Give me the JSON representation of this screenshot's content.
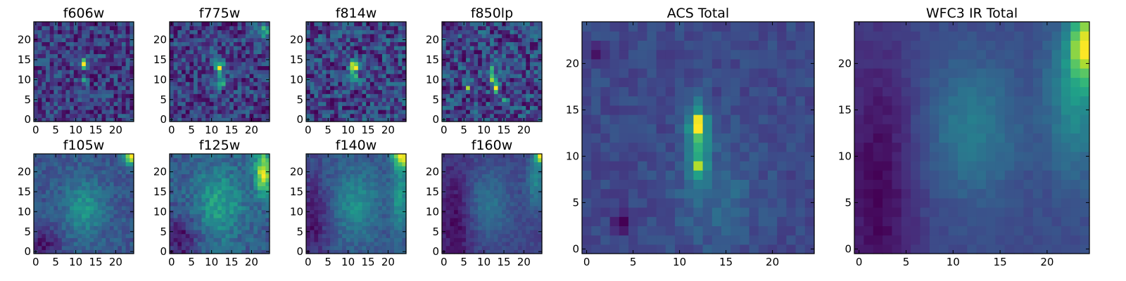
{
  "figure": {
    "colormap": "viridis",
    "colormap_stops": [
      "#440154",
      "#482878",
      "#3e4989",
      "#31688e",
      "#26828e",
      "#1f9e89",
      "#35b779",
      "#6ece58",
      "#b5de2b",
      "#fde725"
    ]
  },
  "chart_data": [
    {
      "type": "heatmap",
      "title": "f606w",
      "xlim": [
        0,
        24
      ],
      "ylim": [
        0,
        24
      ],
      "xticks": [
        "0",
        "5",
        "10",
        "15",
        "20"
      ],
      "yticks": [
        "0",
        "5",
        "10",
        "15",
        "20"
      ],
      "noise": 0.17,
      "background": 0.33,
      "features": [
        {
          "x": 12,
          "y": 14,
          "sx": 0.8,
          "sy": 0.9,
          "amp": 0.65
        },
        {
          "x": 12,
          "y": 10,
          "sx": 0.7,
          "sy": 0.8,
          "amp": 0.35
        }
      ]
    },
    {
      "type": "heatmap",
      "title": "f775w",
      "xlim": [
        0,
        24
      ],
      "ylim": [
        0,
        24
      ],
      "xticks": [
        "0",
        "5",
        "10",
        "15",
        "20"
      ],
      "yticks": [
        "0",
        "5",
        "10",
        "15",
        "20"
      ],
      "noise": 0.15,
      "background": 0.36,
      "features": [
        {
          "x": 12,
          "y": 13,
          "sx": 0.7,
          "sy": 1.6,
          "amp": 0.55
        },
        {
          "x": 12.5,
          "y": 9,
          "sx": 0.7,
          "sy": 0.7,
          "amp": 0.5
        },
        {
          "x": 23,
          "y": 22,
          "sx": 1.2,
          "sy": 2,
          "amp": 0.3
        }
      ]
    },
    {
      "type": "heatmap",
      "title": "f814w",
      "xlim": [
        0,
        24
      ],
      "ylim": [
        0,
        24
      ],
      "xticks": [
        "0",
        "5",
        "10",
        "15",
        "20"
      ],
      "yticks": [
        "0",
        "5",
        "10",
        "15",
        "20"
      ],
      "noise": 0.15,
      "background": 0.34,
      "features": [
        {
          "x": 11.5,
          "y": 13.5,
          "sx": 0.8,
          "sy": 1.2,
          "amp": 0.6
        },
        {
          "x": 12,
          "y": 10,
          "sx": 0.7,
          "sy": 0.8,
          "amp": 0.35
        }
      ]
    },
    {
      "type": "heatmap",
      "title": "f850lp",
      "xlim": [
        0,
        24
      ],
      "ylim": [
        0,
        24
      ],
      "xticks": [
        "0",
        "5",
        "10",
        "15",
        "20"
      ],
      "yticks": [
        "0",
        "5",
        "10",
        "15",
        "20"
      ],
      "noise": 0.16,
      "background": 0.35,
      "features": [
        {
          "x": 12,
          "y": 11,
          "sx": 0.6,
          "sy": 1.5,
          "amp": 0.45
        },
        {
          "x": 13,
          "y": 8,
          "sx": 0.6,
          "sy": 1.2,
          "amp": 0.45
        },
        {
          "x": 6,
          "y": 8,
          "sx": 0.4,
          "sy": 0.4,
          "amp": 0.6
        },
        {
          "x": 15,
          "y": 5,
          "sx": 0.6,
          "sy": 0.8,
          "amp": 0.3
        }
      ]
    },
    {
      "type": "heatmap",
      "title": "f105w",
      "xlim": [
        0,
        24
      ],
      "ylim": [
        0,
        24
      ],
      "xticks": [
        "0",
        "5",
        "10",
        "15",
        "20"
      ],
      "yticks": [
        "0",
        "5",
        "10",
        "15",
        "20"
      ],
      "noise": 0.07,
      "background": 0.4,
      "features": [
        {
          "x": 12,
          "y": 11,
          "sx": 3.5,
          "sy": 5,
          "amp": 0.22
        },
        {
          "x": 24,
          "y": 24,
          "sx": 1.2,
          "sy": 1.6,
          "amp": 0.6
        },
        {
          "x": 2,
          "y": 2,
          "sx": 3,
          "sy": 3,
          "amp": -0.18
        }
      ]
    },
    {
      "type": "heatmap",
      "title": "f125w",
      "xlim": [
        0,
        24
      ],
      "ylim": [
        0,
        24
      ],
      "xticks": [
        "0",
        "5",
        "10",
        "15",
        "20"
      ],
      "yticks": [
        "0",
        "5",
        "10",
        "15",
        "20"
      ],
      "noise": 0.07,
      "background": 0.4,
      "features": [
        {
          "x": 12,
          "y": 12,
          "sx": 4,
          "sy": 6,
          "amp": 0.2
        },
        {
          "x": 23,
          "y": 20,
          "sx": 1.5,
          "sy": 4,
          "amp": 0.45
        },
        {
          "x": 2,
          "y": 3,
          "sx": 3,
          "sy": 4,
          "amp": -0.18
        }
      ]
    },
    {
      "type": "heatmap",
      "title": "f140w",
      "xlim": [
        0,
        24
      ],
      "ylim": [
        0,
        24
      ],
      "xticks": [
        "0",
        "5",
        "10",
        "15",
        "20"
      ],
      "yticks": [
        "0",
        "5",
        "10",
        "15",
        "20"
      ],
      "noise": 0.06,
      "background": 0.33,
      "features": [
        {
          "x": 12,
          "y": 12,
          "sx": 4,
          "sy": 6,
          "amp": 0.2
        },
        {
          "x": 24,
          "y": 24,
          "sx": 2,
          "sy": 2,
          "amp": 0.6
        },
        {
          "x": 23,
          "y": 14,
          "sx": 1.5,
          "sy": 6,
          "amp": 0.25
        },
        {
          "x": 1,
          "y": 8,
          "sx": 3,
          "sy": 8,
          "amp": -0.18
        }
      ]
    },
    {
      "type": "heatmap",
      "title": "f160w",
      "xlim": [
        0,
        24
      ],
      "ylim": [
        0,
        24
      ],
      "xticks": [
        "0",
        "5",
        "10",
        "15",
        "20"
      ],
      "yticks": [
        "0",
        "5",
        "10",
        "15",
        "20"
      ],
      "noise": 0.05,
      "background": 0.3,
      "features": [
        {
          "x": 11,
          "y": 12,
          "sx": 4,
          "sy": 6,
          "amp": 0.18
        },
        {
          "x": 24,
          "y": 24,
          "sx": 0.8,
          "sy": 1.2,
          "amp": 0.7
        },
        {
          "x": 23,
          "y": 18,
          "sx": 1.6,
          "sy": 5,
          "amp": 0.25
        },
        {
          "x": 3,
          "y": 8,
          "sx": 3,
          "sy": 10,
          "amp": -0.18
        }
      ]
    },
    {
      "type": "heatmap",
      "title": "ACS Total",
      "xlim": [
        0,
        24
      ],
      "ylim": [
        0,
        24
      ],
      "xticks": [
        "0",
        "5",
        "10",
        "15",
        "20"
      ],
      "yticks": [
        "0",
        "5",
        "10",
        "15",
        "20"
      ],
      "noise": 0.05,
      "background": 0.28,
      "features": [
        {
          "x": 12,
          "y": 12,
          "sx": 0.8,
          "sy": 3,
          "amp": 0.35
        },
        {
          "x": 12,
          "y": 13.5,
          "sx": 0.5,
          "sy": 0.7,
          "amp": 0.45
        },
        {
          "x": 12,
          "y": 9,
          "sx": 0.5,
          "sy": 0.5,
          "amp": 0.3
        },
        {
          "x": 14,
          "y": 6,
          "sx": 3,
          "sy": 4,
          "amp": 0.1
        },
        {
          "x": 4,
          "y": 3,
          "sx": 1,
          "sy": 1,
          "amp": -0.15
        },
        {
          "x": 1,
          "y": 21,
          "sx": 0.8,
          "sy": 0.8,
          "amp": -0.12
        }
      ]
    },
    {
      "type": "heatmap",
      "title": "WFC3 IR Total",
      "xlim": [
        0,
        24
      ],
      "ylim": [
        0,
        24
      ],
      "xticks": [
        "0",
        "5",
        "10",
        "15",
        "20"
      ],
      "yticks": [
        "0",
        "5",
        "10",
        "15",
        "20"
      ],
      "noise": 0.03,
      "background": 0.3,
      "features": [
        {
          "x": 12,
          "y": 13,
          "sx": 3.5,
          "sy": 5,
          "amp": 0.2
        },
        {
          "x": 24,
          "y": 22,
          "sx": 1,
          "sy": 2.5,
          "amp": 0.65
        },
        {
          "x": 23,
          "y": 17,
          "sx": 2,
          "sy": 6,
          "amp": 0.3
        },
        {
          "x": 2,
          "y": 6,
          "sx": 3,
          "sy": 12,
          "amp": -0.22
        }
      ]
    }
  ]
}
